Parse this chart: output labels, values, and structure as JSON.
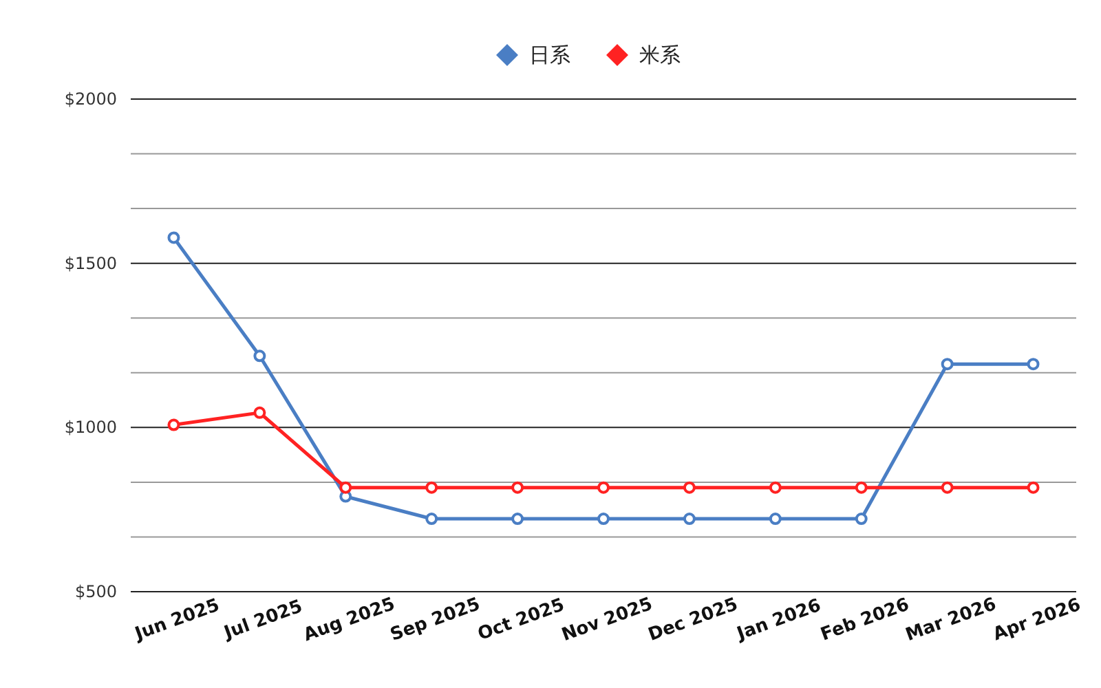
{
  "chart_data": {
    "type": "line",
    "categories": [
      "Jun 2025",
      "Jul 2025",
      "Aug 2025",
      "Sep 2025",
      "Oct 2025",
      "Nov 2025",
      "Dec 2025",
      "Jan 2026",
      "Feb 2026",
      "Mar 2026",
      "Apr 2026"
    ],
    "series": [
      {
        "name": "日系",
        "color": "#4a7ec4",
        "values": [
          1578,
          1218,
          790,
          722,
          722,
          722,
          722,
          722,
          722,
          1193,
          1193
        ]
      },
      {
        "name": "米系",
        "color": "#ff2222",
        "values": [
          1008,
          1045,
          817,
          817,
          817,
          817,
          817,
          817,
          817,
          817,
          817
        ]
      }
    ],
    "ylim": [
      500,
      2000
    ],
    "yticks": [
      {
        "value": 500,
        "label": "$500"
      },
      {
        "value": 666.667,
        "label": null
      },
      {
        "value": 833.333,
        "label": null
      },
      {
        "value": 1000,
        "label": "$1000"
      },
      {
        "value": 1166.667,
        "label": null
      },
      {
        "value": 1333.333,
        "label": null
      },
      {
        "value": 1500,
        "label": "$1500"
      },
      {
        "value": 1666.667,
        "label": null
      },
      {
        "value": 1833.333,
        "label": null
      },
      {
        "value": 2000,
        "label": "$2000"
      }
    ],
    "grid": "y",
    "legend": "top",
    "marker": "circle",
    "line_style": "solid"
  }
}
